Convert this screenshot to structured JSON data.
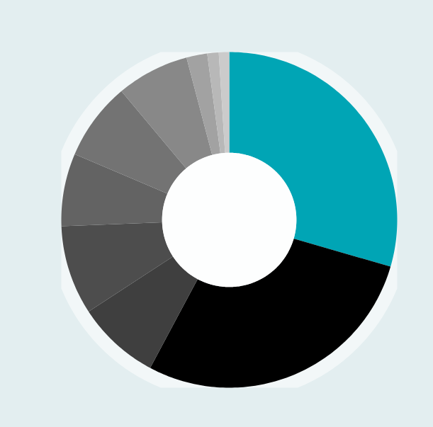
{
  "chart_data": {
    "type": "donut",
    "values": [
      29.5,
      28.3,
      8,
      8.6,
      7,
      7.5,
      7,
      2,
      1.1,
      1
    ],
    "colors": [
      "#00a5b5",
      "#000000",
      "#3f3f3f",
      "#4d4d4d",
      "#636363",
      "#737373",
      "#888888",
      "#a2a2a2",
      "#b8b8b8",
      "#cbcbcb"
    ],
    "tick_labels": false
  }
}
